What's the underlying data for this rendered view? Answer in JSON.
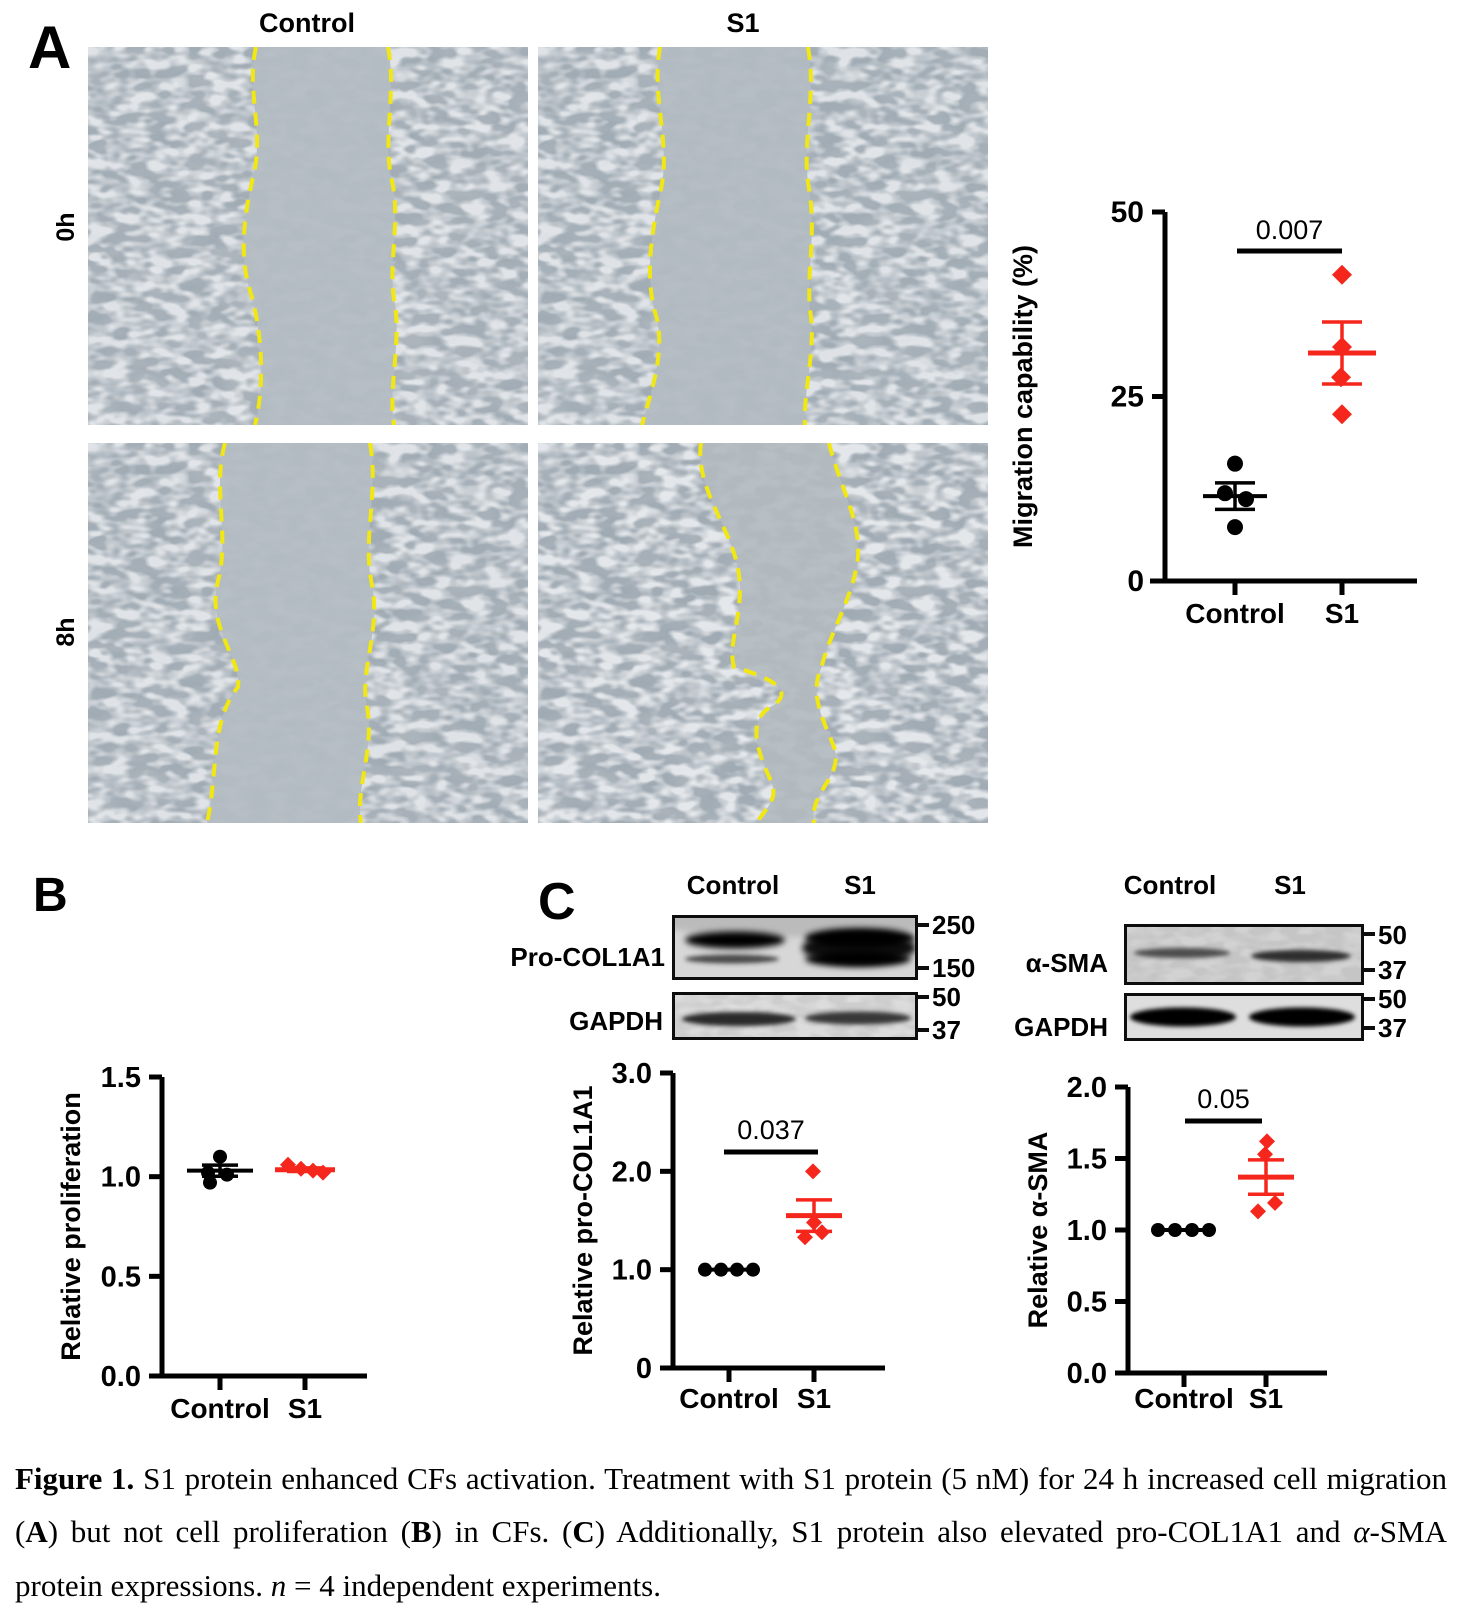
{
  "colors": {
    "control_black": "#000000",
    "s1_red": "#F5261C",
    "wound_line_yellow": "#F1E712",
    "micro_background": "#AEB6BD"
  },
  "panel_a": {
    "label": "A",
    "column_headers": [
      "Control",
      "S1"
    ],
    "row_labels": [
      "0h",
      "8h"
    ],
    "micrographs": [
      {
        "condition": "Control",
        "timepoint": "0h"
      },
      {
        "condition": "S1",
        "timepoint": "0h"
      },
      {
        "condition": "Control",
        "timepoint": "8h"
      },
      {
        "condition": "S1",
        "timepoint": "8h"
      }
    ]
  },
  "panel_b": {
    "label": "B"
  },
  "panel_c": {
    "label": "C",
    "blot_left": {
      "column_headers": [
        "Control",
        "S1"
      ],
      "rows": [
        {
          "protein": "Pro-COL1A1",
          "markers": [
            "250",
            "150"
          ]
        },
        {
          "protein": "GAPDH",
          "markers": [
            "50",
            "37"
          ]
        }
      ]
    },
    "blot_right": {
      "column_headers": [
        "Control",
        "S1"
      ],
      "rows": [
        {
          "protein": "α-SMA",
          "markers": [
            "50",
            "37"
          ]
        },
        {
          "protein": "GAPDH",
          "markers": [
            "50",
            "37"
          ]
        }
      ]
    }
  },
  "chart_data": [
    {
      "id": "migration",
      "type": "scatter",
      "title": "",
      "ylabel": "Migration capability (%)",
      "ylim": [
        0,
        50
      ],
      "yticks": [
        0,
        25,
        50
      ],
      "ytick_labels": [
        "0",
        "25",
        "50"
      ],
      "categories": [
        "Control",
        "S1"
      ],
      "p_value": "0.007",
      "series": [
        {
          "name": "Control",
          "marker": "circle",
          "color": "#000000",
          "values": [
            15.9,
            11.9,
            11.1,
            7.3
          ],
          "x_offsets": [
            0,
            -10,
            11,
            0
          ],
          "mean": 11.5,
          "sem": 1.8
        },
        {
          "name": "S1",
          "marker": "diamond",
          "color": "#F5261C",
          "values": [
            41.5,
            31.7,
            27.6,
            22.6
          ],
          "x_offsets": [
            0,
            0,
            -1,
            0
          ],
          "mean": 30.9,
          "sem": 4.2
        }
      ]
    },
    {
      "id": "proliferation",
      "type": "scatter",
      "title": "",
      "ylabel": "Relative proliferation",
      "ylim": [
        0,
        1.5
      ],
      "yticks": [
        0,
        0.5,
        1.0,
        1.5
      ],
      "ytick_labels": [
        "0.0",
        "0.5",
        "1.0",
        "1.5"
      ],
      "categories": [
        "Control",
        "S1"
      ],
      "p_value": null,
      "series": [
        {
          "name": "Control",
          "marker": "circle",
          "color": "#000000",
          "values": [
            1.1,
            1.02,
            1.01,
            0.97
          ],
          "x_offsets": [
            0,
            -12,
            7,
            -10
          ],
          "mean": 1.03,
          "sem": 0.028
        },
        {
          "name": "S1",
          "marker": "diamond",
          "color": "#F5261C",
          "values": [
            1.06,
            1.04,
            1.03,
            1.02
          ],
          "x_offsets": [
            -17,
            -4,
            8,
            18
          ],
          "mean": 1.035,
          "sem": 0.009
        }
      ]
    },
    {
      "id": "pro_col1a1",
      "type": "scatter",
      "title": "",
      "ylabel": "Relative pro-COL1A1",
      "ylim": [
        0,
        3
      ],
      "yticks": [
        0,
        1,
        2,
        3
      ],
      "ytick_labels": [
        "0",
        "1.0",
        "2.0",
        "3.0"
      ],
      "categories": [
        "Control",
        "S1"
      ],
      "p_value": "0.037",
      "series": [
        {
          "name": "Control",
          "marker": "circle",
          "color": "#000000",
          "values": [
            1.0,
            1.0,
            1.0,
            1.0
          ],
          "x_offsets": [
            -24,
            -8,
            8,
            24
          ],
          "mean": 1.0,
          "sem": 0
        },
        {
          "name": "S1",
          "marker": "diamond",
          "color": "#F5261C",
          "values": [
            2.0,
            1.48,
            1.33,
            1.38
          ],
          "x_offsets": [
            -1,
            0,
            -9,
            8
          ],
          "mean": 1.55,
          "sem": 0.16
        }
      ]
    },
    {
      "id": "alpha_sma",
      "type": "scatter",
      "title": "",
      "ylabel": "Relative α-SMA",
      "ylim": [
        0,
        2
      ],
      "yticks": [
        0,
        0.5,
        1.0,
        1.5,
        2.0
      ],
      "ytick_labels": [
        "0.0",
        "0.5",
        "1.0",
        "1.5",
        "2.0"
      ],
      "categories": [
        "Control",
        "S1"
      ],
      "p_value": "0.05",
      "series": [
        {
          "name": "Control",
          "marker": "circle",
          "color": "#000000",
          "values": [
            1.0,
            1.0,
            1.0,
            1.0
          ],
          "x_offsets": [
            -26,
            -9,
            8,
            25
          ],
          "mean": 1.0,
          "sem": 0
        },
        {
          "name": "S1",
          "marker": "diamond",
          "color": "#F5261C",
          "values": [
            1.62,
            1.53,
            1.19,
            1.13
          ],
          "x_offsets": [
            1,
            -1,
            9,
            -8
          ],
          "mean": 1.37,
          "sem": 0.12
        }
      ]
    }
  ],
  "caption": {
    "segments": [
      {
        "text": "Figure 1. ",
        "bold": true
      },
      {
        "text": "S1 protein enhanced CFs activation. Treatment with S1 protein (5 nM) for 24 h increased cell migration ("
      },
      {
        "text": "A",
        "bold": true
      },
      {
        "text": ") but not cell proliferation ("
      },
      {
        "text": "B",
        "bold": true
      },
      {
        "text": ") in CFs. ("
      },
      {
        "text": "C",
        "bold": true
      },
      {
        "text": ") Additionally, S1 protein also elevated pro-COL1A1 and "
      },
      {
        "text": "α",
        "italic": true
      },
      {
        "text": "-SMA protein expressions. "
      },
      {
        "text": "n",
        "italic": true
      },
      {
        "text": " = 4 independent experiments."
      }
    ]
  }
}
